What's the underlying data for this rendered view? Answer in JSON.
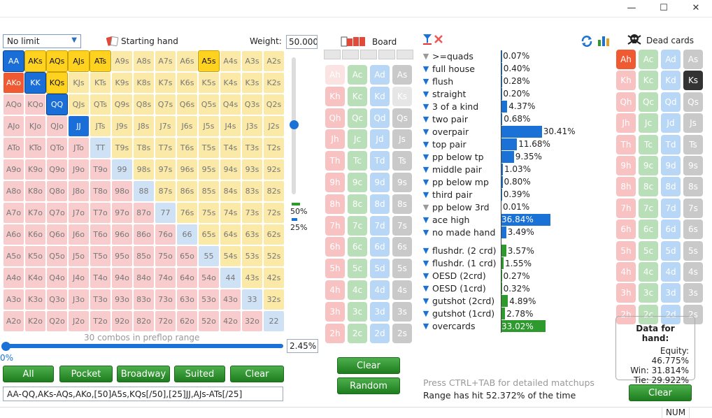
{
  "window": {
    "minimize": "—",
    "maximize": "☐",
    "close": "✕"
  },
  "left": {
    "mode": "No limit",
    "starting_hand_label": "Starting hand",
    "weight_label": "Weight:",
    "weight_value": "50.000",
    "slider_mark_50": "50%",
    "slider_mark_25": "25%",
    "combos_text": "30 combos in preflop range",
    "zero_pct": "0%",
    "pct_value": "2.45%",
    "buttons": [
      "All",
      "Pocket",
      "Broadway",
      "Suited",
      "Clear"
    ],
    "range_text": "AA-QQ,AKs-AQs,AKo,[50]A5s,KQs[/50],[25]JJ,AJs-ATs[/25]"
  },
  "grid": [
    [
      "AA",
      "AKs",
      "AQs",
      "AJs",
      "ATs",
      "A9s",
      "A8s",
      "A7s",
      "A6s",
      "A5s",
      "A4s",
      "A3s",
      "A2s"
    ],
    [
      "AKo",
      "KK",
      "KQs",
      "KJs",
      "KTs",
      "K9s",
      "K8s",
      "K7s",
      "K6s",
      "K5s",
      "K4s",
      "K3s",
      "K2s"
    ],
    [
      "AQo",
      "KQo",
      "QQ",
      "QJs",
      "QTs",
      "Q9s",
      "Q8s",
      "Q7s",
      "Q6s",
      "Q5s",
      "Q4s",
      "Q3s",
      "Q2s"
    ],
    [
      "AJo",
      "KJo",
      "QJo",
      "JJ",
      "JTs",
      "J9s",
      "J8s",
      "J7s",
      "J6s",
      "J5s",
      "J4s",
      "J3s",
      "J2s"
    ],
    [
      "ATo",
      "KTo",
      "QTo",
      "JTo",
      "TT",
      "T9s",
      "T8s",
      "T7s",
      "T6s",
      "T5s",
      "T4s",
      "T3s",
      "T2s"
    ],
    [
      "A9o",
      "K9o",
      "Q9o",
      "J9o",
      "T9o",
      "99",
      "98s",
      "97s",
      "96s",
      "95s",
      "94s",
      "93s",
      "92s"
    ],
    [
      "A8o",
      "K8o",
      "Q8o",
      "J8o",
      "T8o",
      "98o",
      "88",
      "87s",
      "86s",
      "85s",
      "84s",
      "83s",
      "82s"
    ],
    [
      "A7o",
      "K7o",
      "Q7o",
      "J7o",
      "T7o",
      "97o",
      "87o",
      "77",
      "76s",
      "75s",
      "74s",
      "73s",
      "72s"
    ],
    [
      "A6o",
      "K6o",
      "Q6o",
      "J6o",
      "T6o",
      "96o",
      "86o",
      "76o",
      "66",
      "65s",
      "64s",
      "63s",
      "62s"
    ],
    [
      "A5o",
      "K5o",
      "Q5o",
      "J5o",
      "T5o",
      "95o",
      "85o",
      "75o",
      "65o",
      "55",
      "54s",
      "53s",
      "52s"
    ],
    [
      "A4o",
      "K4o",
      "Q4o",
      "J4o",
      "T4o",
      "94o",
      "84o",
      "74o",
      "64o",
      "54o",
      "44",
      "43s",
      "42s"
    ],
    [
      "A3o",
      "K3o",
      "Q3o",
      "J3o",
      "T3o",
      "93o",
      "83o",
      "73o",
      "63o",
      "53o",
      "43o",
      "33",
      "32s"
    ],
    [
      "A2o",
      "K2o",
      "Q2o",
      "J2o",
      "T2o",
      "92o",
      "82o",
      "72o",
      "62o",
      "52o",
      "42o",
      "32o",
      "22"
    ]
  ],
  "board": {
    "label": "Board",
    "ranks": [
      "A",
      "K",
      "Q",
      "J",
      "T",
      "9",
      "8",
      "7",
      "6",
      "5",
      "4",
      "3",
      "2"
    ],
    "suits": [
      "h",
      "c",
      "d",
      "s"
    ],
    "clear": "Clear",
    "random": "Random"
  },
  "stats": {
    "made": [
      {
        "name": ">=quads",
        "pct": "0.07%",
        "val": 0.07
      },
      {
        "name": "full house",
        "pct": "0.40%",
        "val": 0.4
      },
      {
        "name": "flush",
        "pct": "0.28%",
        "val": 0.28
      },
      {
        "name": "straight",
        "pct": "0.20%",
        "val": 0.2
      },
      {
        "name": "3 of a kind",
        "pct": "4.37%",
        "val": 4.37
      },
      {
        "name": "two pair",
        "pct": "0.68%",
        "val": 0.68
      },
      {
        "name": "overpair",
        "pct": "30.41%",
        "val": 30.41
      },
      {
        "name": "top pair",
        "pct": "11.68%",
        "val": 11.68
      },
      {
        "name": "pp below tp",
        "pct": "9.35%",
        "val": 9.35
      },
      {
        "name": "middle pair",
        "pct": "1.03%",
        "val": 1.03
      },
      {
        "name": "pp below mp",
        "pct": "0.80%",
        "val": 0.8
      },
      {
        "name": "third pair",
        "pct": "0.39%",
        "val": 0.39
      },
      {
        "name": "pp below 3rd",
        "pct": "0.01%",
        "val": 0.01
      },
      {
        "name": "ace high",
        "pct": "36.84%",
        "val": 36.84
      },
      {
        "name": "no made hand",
        "pct": "3.49%",
        "val": 3.49
      }
    ],
    "draws": [
      {
        "name": "flushdr. (2 crd)",
        "pct": "3.57%",
        "val": 3.57
      },
      {
        "name": "flushdr. (1 crd)",
        "pct": "1.55%",
        "val": 1.55
      },
      {
        "name": "OESD (2crd)",
        "pct": "0.27%",
        "val": 0.27
      },
      {
        "name": "OESD (1crd)",
        "pct": "0.32%",
        "val": 0.32
      },
      {
        "name": "gutshot (2crd)",
        "pct": "4.89%",
        "val": 4.89
      },
      {
        "name": "gutshot (1crd)",
        "pct": "2.78%",
        "val": 2.78
      },
      {
        "name": "overcards",
        "pct": "33.02%",
        "val": 33.02
      }
    ],
    "hint": "Press CTRL+TAB for detailed matchups",
    "range_hit": "Range has hit 52.372% of the time"
  },
  "dead": {
    "label": "Dead cards",
    "clear": "Clear"
  },
  "data_for_hand": {
    "title": "Data for hand:",
    "equity": "Equity: 46.775%",
    "win": "Win: 31.814%",
    "tie": "Tie: 29.922%"
  },
  "statusbar": {
    "num": "NUM"
  },
  "colors": {
    "blue": "#1a72d6",
    "green": "#2e9a2e",
    "red": "#f05a33"
  }
}
